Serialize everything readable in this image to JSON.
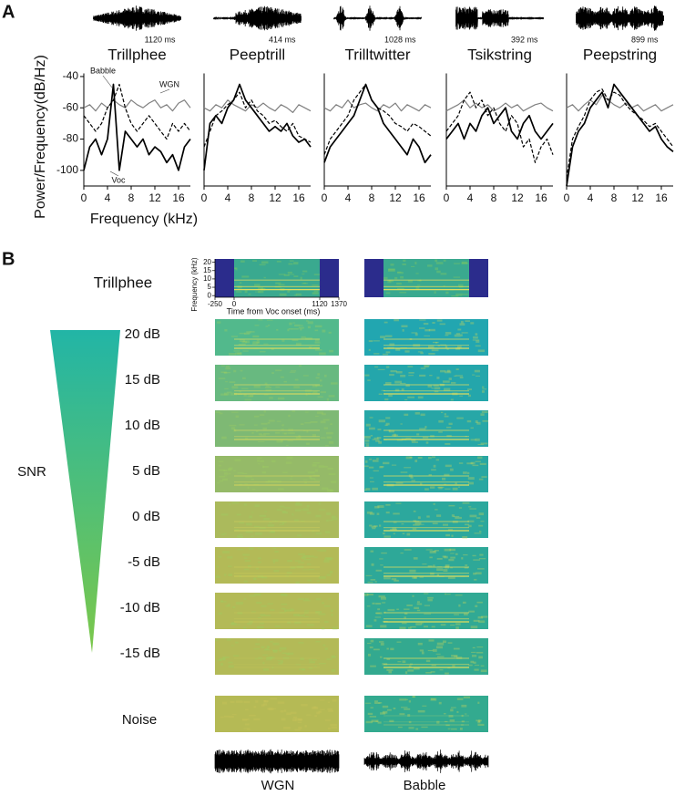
{
  "panel_labels": [
    "A",
    "B"
  ],
  "chart_data": [
    {
      "type": "line",
      "title": "Trillphee",
      "duration_label": "1120 ms",
      "ylabel": "Power/Frequency(dB/Hz)",
      "xlabel": "Frequency (kHz)",
      "xlim": [
        0,
        18
      ],
      "xticks": [
        0,
        4,
        8,
        12,
        16
      ],
      "ylim": [
        -110,
        -38
      ],
      "yticks": [
        -100,
        -80,
        -60,
        -40
      ],
      "x": [
        0,
        1,
        2,
        3,
        4,
        5,
        6,
        7,
        8,
        9,
        10,
        11,
        12,
        13,
        14,
        15,
        16,
        17,
        18
      ],
      "series": [
        {
          "name": "Voc",
          "color": "#000000",
          "dashed": false,
          "values": [
            -100,
            -85,
            -80,
            -90,
            -80,
            -45,
            -100,
            -75,
            -80,
            -85,
            -80,
            -90,
            -85,
            -88,
            -95,
            -90,
            -100,
            -85,
            -80
          ]
        },
        {
          "name": "Babble",
          "color": "#000000",
          "dashed": true,
          "values": [
            -65,
            -70,
            -75,
            -70,
            -60,
            -55,
            -45,
            -60,
            -70,
            -75,
            -70,
            -65,
            -70,
            -75,
            -80,
            -70,
            -75,
            -70,
            -75
          ]
        },
        {
          "name": "WGN",
          "color": "#808080",
          "dashed": false,
          "values": [
            -60,
            -58,
            -62,
            -57,
            -60,
            -55,
            -58,
            -60,
            -55,
            -58,
            -60,
            -57,
            -55,
            -60,
            -58,
            -62,
            -57,
            -55,
            -60
          ]
        }
      ]
    },
    {
      "type": "line",
      "title": "Peeptrill",
      "duration_label": "414 ms",
      "xlim": [
        0,
        18
      ],
      "xticks": [
        0,
        4,
        8,
        12,
        16
      ],
      "ylim": [
        -110,
        -38
      ],
      "x": [
        0,
        1,
        2,
        3,
        4,
        5,
        6,
        7,
        8,
        9,
        10,
        11,
        12,
        13,
        14,
        15,
        16,
        17,
        18
      ],
      "series": [
        {
          "color": "#000000",
          "dashed": false,
          "values": [
            -100,
            -70,
            -65,
            -70,
            -60,
            -55,
            -45,
            -55,
            -60,
            -65,
            -70,
            -75,
            -72,
            -75,
            -70,
            -78,
            -82,
            -80,
            -85
          ]
        },
        {
          "color": "#000000",
          "dashed": true,
          "values": [
            -85,
            -75,
            -65,
            -62,
            -58,
            -55,
            -50,
            -60,
            -55,
            -62,
            -65,
            -70,
            -68,
            -72,
            -75,
            -70,
            -78,
            -80,
            -82
          ]
        },
        {
          "color": "#808080",
          "dashed": false,
          "values": [
            -60,
            -62,
            -58,
            -60,
            -55,
            -58,
            -60,
            -62,
            -58,
            -60,
            -57,
            -60,
            -62,
            -58,
            -60,
            -63,
            -58,
            -60,
            -62
          ]
        }
      ]
    },
    {
      "type": "line",
      "title": "Trilltwitter",
      "duration_label": "1028 ms",
      "xlim": [
        0,
        18
      ],
      "xticks": [
        0,
        4,
        8,
        12,
        16
      ],
      "ylim": [
        -110,
        -38
      ],
      "x": [
        0,
        1,
        2,
        3,
        4,
        5,
        6,
        7,
        8,
        9,
        10,
        11,
        12,
        13,
        14,
        15,
        16,
        17,
        18
      ],
      "series": [
        {
          "color": "#000000",
          "dashed": false,
          "values": [
            -95,
            -85,
            -80,
            -75,
            -70,
            -65,
            -55,
            -45,
            -55,
            -60,
            -70,
            -75,
            -80,
            -85,
            -90,
            -80,
            -85,
            -95,
            -90
          ]
        },
        {
          "color": "#000000",
          "dashed": true,
          "values": [
            -90,
            -80,
            -75,
            -70,
            -65,
            -55,
            -50,
            -45,
            -55,
            -60,
            -62,
            -65,
            -70,
            -72,
            -75,
            -70,
            -72,
            -75,
            -78
          ]
        },
        {
          "color": "#808080",
          "dashed": false,
          "values": [
            -60,
            -62,
            -58,
            -60,
            -55,
            -60,
            -58,
            -57,
            -60,
            -62,
            -58,
            -60,
            -57,
            -62,
            -58,
            -60,
            -62,
            -58,
            -60
          ]
        }
      ]
    },
    {
      "type": "line",
      "title": "Tsikstring",
      "duration_label": "392 ms",
      "xlim": [
        0,
        18
      ],
      "xticks": [
        0,
        4,
        8,
        12,
        16
      ],
      "ylim": [
        -110,
        -38
      ],
      "x": [
        0,
        1,
        2,
        3,
        4,
        5,
        6,
        7,
        8,
        9,
        10,
        11,
        12,
        13,
        14,
        15,
        16,
        17,
        18
      ],
      "series": [
        {
          "color": "#000000",
          "dashed": false,
          "values": [
            -80,
            -75,
            -70,
            -80,
            -70,
            -75,
            -65,
            -60,
            -70,
            -65,
            -60,
            -75,
            -80,
            -70,
            -65,
            -75,
            -80,
            -75,
            -70
          ]
        },
        {
          "color": "#000000",
          "dashed": true,
          "values": [
            -75,
            -70,
            -65,
            -55,
            -50,
            -60,
            -55,
            -65,
            -60,
            -70,
            -75,
            -65,
            -70,
            -85,
            -80,
            -95,
            -85,
            -80,
            -90
          ]
        },
        {
          "color": "#808080",
          "dashed": false,
          "values": [
            -62,
            -60,
            -58,
            -55,
            -60,
            -57,
            -60,
            -58,
            -62,
            -60,
            -57,
            -60,
            -58,
            -62,
            -60,
            -58,
            -57,
            -60,
            -62
          ]
        }
      ]
    },
    {
      "type": "line",
      "title": "Peepstring",
      "duration_label": "899 ms",
      "xlim": [
        0,
        18
      ],
      "xticks": [
        0,
        4,
        8,
        12,
        16
      ],
      "ylim": [
        -110,
        -38
      ],
      "x": [
        0,
        1,
        2,
        3,
        4,
        5,
        6,
        7,
        8,
        9,
        10,
        11,
        12,
        13,
        14,
        15,
        16,
        17,
        18
      ],
      "series": [
        {
          "color": "#000000",
          "dashed": false,
          "values": [
            -110,
            -85,
            -75,
            -70,
            -60,
            -55,
            -50,
            -60,
            -45,
            -50,
            -55,
            -60,
            -65,
            -70,
            -75,
            -72,
            -80,
            -85,
            -88
          ]
        },
        {
          "color": "#000000",
          "dashed": true,
          "values": [
            -105,
            -80,
            -72,
            -65,
            -55,
            -50,
            -48,
            -55,
            -50,
            -52,
            -58,
            -62,
            -65,
            -68,
            -72,
            -70,
            -75,
            -80,
            -85
          ]
        },
        {
          "color": "#808080",
          "dashed": false,
          "values": [
            -60,
            -58,
            -62,
            -58,
            -55,
            -58,
            -52,
            -55,
            -58,
            -60,
            -57,
            -60,
            -58,
            -62,
            -60,
            -58,
            -62,
            -60,
            -58
          ]
        }
      ]
    }
  ],
  "spectrograms": {
    "vocalization": "Trillphee",
    "inset": {
      "ylabel": "Frequency (kHz)",
      "xlabel": "Time  from Voc onset (ms)",
      "xlim": [
        -250,
        1370
      ],
      "xticks": [
        -250,
        0,
        1120,
        1370
      ],
      "ylim": [
        -1,
        22
      ],
      "yticks": [
        0,
        5,
        10,
        15,
        20
      ],
      "voc_span": [
        0,
        1120
      ]
    },
    "snr_label": "SNR",
    "snr_levels": [
      "20 dB",
      "15 dB",
      "10 dB",
      "5 dB",
      "0 dB",
      "-5 dB",
      "-10 dB",
      "-15 dB"
    ],
    "noise_row": "Noise",
    "columns": [
      "WGN",
      "Babble"
    ]
  }
}
